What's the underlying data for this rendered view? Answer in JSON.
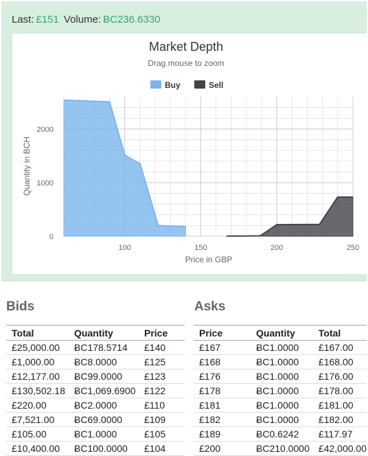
{
  "ticker": {
    "last_label": "Last:",
    "last_value": "£151",
    "volume_label": "Volume:",
    "volume_value": "ɃC236.6330"
  },
  "chart_data": {
    "type": "area",
    "title": "Market Depth",
    "subtitle": "Drag mouse to zoom",
    "xlabel": "Price in GBP",
    "ylabel": "Quantity in BCH",
    "xlim": [
      60,
      250
    ],
    "ylim": [
      0,
      2600
    ],
    "x_ticks": [
      100,
      150,
      200,
      250
    ],
    "y_ticks": [
      0,
      1000,
      2000
    ],
    "grid": true,
    "legend_position": "top",
    "series": [
      {
        "name": "Buy",
        "color": "#7cb5ec",
        "points": [
          [
            60,
            2540
          ],
          [
            90,
            2505
          ],
          [
            100,
            1520
          ],
          [
            104,
            1445
          ],
          [
            105,
            1430
          ],
          [
            109,
            1365
          ],
          [
            110,
            1360
          ],
          [
            122,
            200
          ],
          [
            123,
            200
          ],
          [
            125,
            195
          ],
          [
            140,
            180
          ]
        ]
      },
      {
        "name": "Sell",
        "color": "#434348",
        "points": [
          [
            167,
            1
          ],
          [
            168,
            2
          ],
          [
            176,
            3
          ],
          [
            178,
            4
          ],
          [
            181,
            5
          ],
          [
            182,
            6
          ],
          [
            189,
            6.6
          ],
          [
            200,
            216.6
          ],
          [
            228,
            220
          ],
          [
            240,
            730
          ],
          [
            250,
            730
          ]
        ]
      }
    ]
  },
  "bids": {
    "title": "Bids",
    "headers": [
      "Total",
      "Quantity",
      "Price"
    ],
    "rows": [
      [
        "£25,000.00",
        "ɃC178.5714",
        "£140"
      ],
      [
        "£1,000.00",
        "ɃC8.0000",
        "£125"
      ],
      [
        "£12,177.00",
        "ɃC99.0000",
        "£123"
      ],
      [
        "£130,502.18",
        "ɃC1,069.6900",
        "£122"
      ],
      [
        "£220.00",
        "ɃC2.0000",
        "£110"
      ],
      [
        "£7,521.00",
        "ɃC69.0000",
        "£109"
      ],
      [
        "£105.00",
        "ɃC1.0000",
        "£105"
      ],
      [
        "£10,400.00",
        "ɃC100.0000",
        "£104"
      ]
    ]
  },
  "asks": {
    "title": "Asks",
    "headers": [
      "Price",
      "Quantity",
      "Total"
    ],
    "rows": [
      [
        "£167",
        "ɃC1.0000",
        "£167.00"
      ],
      [
        "£168",
        "ɃC1.0000",
        "£168.00"
      ],
      [
        "£176",
        "ɃC1.0000",
        "£176.00"
      ],
      [
        "£178",
        "ɃC1.0000",
        "£178.00"
      ],
      [
        "£181",
        "ɃC1.0000",
        "£181.00"
      ],
      [
        "£182",
        "ɃC1.0000",
        "£182.00"
      ],
      [
        "£189",
        "ɃC0.6242",
        "£117.97"
      ],
      [
        "£200",
        "ɃC210.0000",
        "£42,000.00"
      ]
    ]
  }
}
